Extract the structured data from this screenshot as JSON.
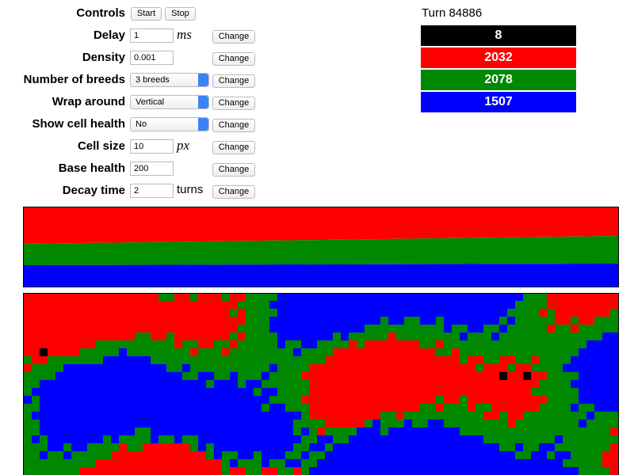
{
  "controls": [
    {
      "label": "Controls",
      "buttons": [
        "Start",
        "Stop"
      ]
    },
    {
      "label": "Delay",
      "input": "1",
      "unit": "ms",
      "button": "Change"
    },
    {
      "label": "Density",
      "input": "0.001",
      "button": "Change"
    },
    {
      "label": "Number of breeds",
      "select": "3 breeds",
      "button": "Change"
    },
    {
      "label": "Wrap around",
      "select": "Vertical",
      "button": "Change"
    },
    {
      "label": "Show cell health",
      "select": "No",
      "button": "Change"
    },
    {
      "label": "Cell size",
      "input": "10",
      "unit": "px",
      "button": "Change"
    },
    {
      "label": "Base health",
      "input": "200",
      "button": "Change"
    },
    {
      "label": "Decay time",
      "input": "2",
      "unit": "turns",
      "button": "Change"
    }
  ],
  "turn": "Turn 84886",
  "populations": [
    {
      "count": "8",
      "color": "#000000"
    },
    {
      "count": "2032",
      "color": "#ff0000"
    },
    {
      "count": "2078",
      "color": "#008800"
    },
    {
      "count": "1507",
      "color": "#0000ff"
    }
  ]
}
